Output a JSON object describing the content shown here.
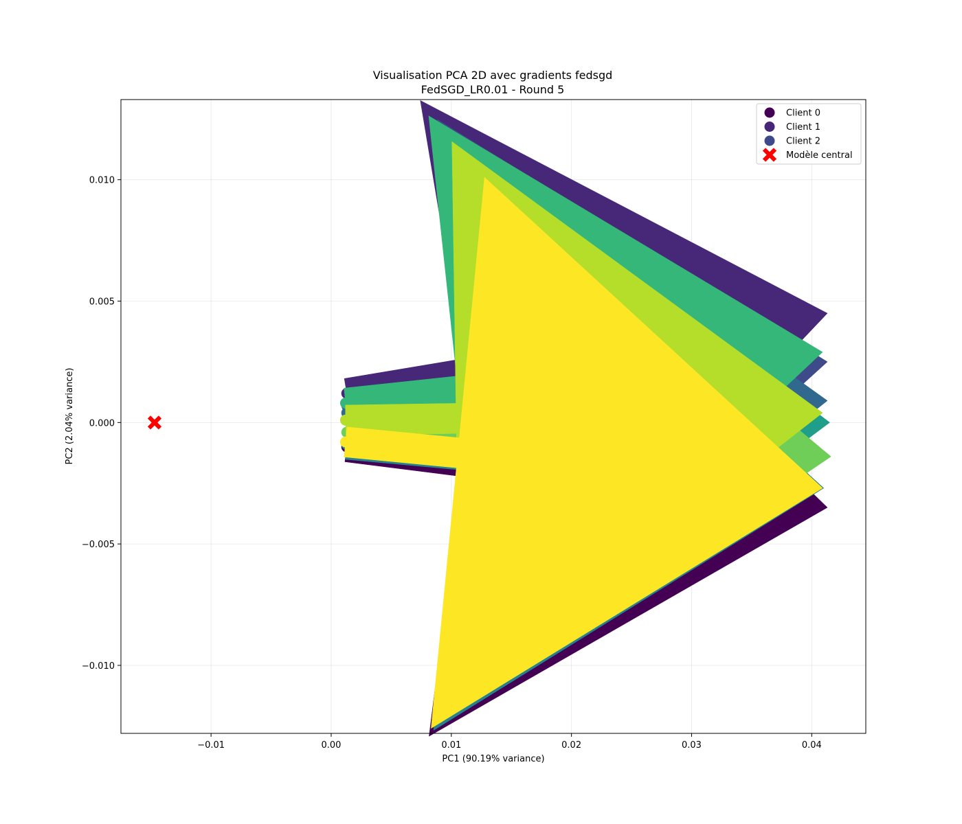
{
  "chart_data": {
    "type": "scatter",
    "title": "Visualisation PCA 2D avec gradients fedsgd",
    "subtitle": "FedSGD_LR0.01 - Round 5",
    "xlabel": "PC1 (90.19% variance)",
    "ylabel": "PC2 (2.04% variance)",
    "xlim": [
      -0.0175,
      0.0445
    ],
    "ylim": [
      -0.0128,
      0.0133
    ],
    "xticks": [
      -0.01,
      0.0,
      0.01,
      0.02,
      0.03,
      0.04
    ],
    "xtick_labels": [
      "−0.01",
      "0.00",
      "0.01",
      "0.02",
      "0.03",
      "0.04"
    ],
    "yticks": [
      -0.01,
      -0.005,
      0.0,
      0.005,
      0.01
    ],
    "ytick_labels": [
      "−0.010",
      "−0.005",
      "0.000",
      "0.005",
      "0.010"
    ],
    "grid": true,
    "legend_position": "top-right",
    "legend": [
      {
        "label": "Client 0",
        "marker": "circle",
        "color": "#440154"
      },
      {
        "label": "Client 1",
        "marker": "circle",
        "color": "#472777"
      },
      {
        "label": "Client 2",
        "marker": "circle",
        "color": "#3e4a89"
      },
      {
        "label": "Modèle central",
        "marker": "x",
        "color": "#ff0000"
      }
    ],
    "central_model": {
      "x": -0.0147,
      "y": 0.0,
      "color": "#ff0000"
    },
    "series": [
      {
        "color": "#440154",
        "x": 0.0013,
        "y": -0.001,
        "dx": 0.04,
        "dy": -0.0025
      },
      {
        "color": "#472777",
        "x": 0.0013,
        "y": 0.0012,
        "dx": 0.04,
        "dy": 0.0033
      },
      {
        "color": "#3e4a89",
        "x": 0.0013,
        "y": 0.0007,
        "dx": 0.04,
        "dy": 0.0018
      },
      {
        "color": "#31688e",
        "x": 0.0013,
        "y": 0.0004,
        "dx": 0.04,
        "dy": 0.0005
      },
      {
        "color": "#26828e",
        "x": 0.0013,
        "y": -0.0009,
        "dx": 0.0397,
        "dy": -0.0018
      },
      {
        "color": "#1f9e89",
        "x": 0.0013,
        "y": 0.0001,
        "dx": 0.0402,
        "dy": -0.0001
      },
      {
        "color": "#35b779",
        "x": 0.0012,
        "y": 0.0008,
        "dx": 0.0397,
        "dy": 0.0021
      },
      {
        "color": "#6ece58",
        "x": 0.0013,
        "y": -0.0004,
        "dx": 0.0403,
        "dy": -0.001
      },
      {
        "color": "#b5de2b",
        "x": 0.0012,
        "y": 0.0001,
        "dx": 0.0397,
        "dy": 0.0003
      },
      {
        "color": "#fde725",
        "x": 0.0012,
        "y": -0.0008,
        "dx": 0.0397,
        "dy": -0.0019
      }
    ]
  }
}
